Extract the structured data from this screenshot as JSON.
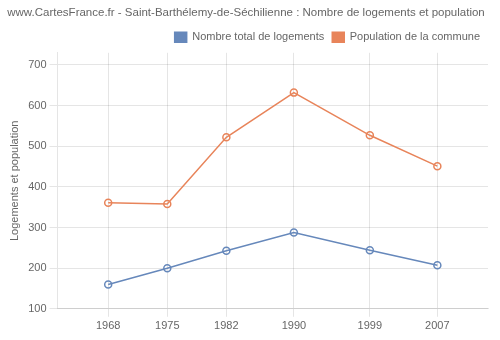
{
  "chart_data": {
    "type": "line",
    "title": "www.CartesFrance.fr - Saint-Barthélemy-de-Séchilienne : Nombre de logements et population",
    "ylabel": "Logements et population",
    "x": [
      1968,
      1975,
      1982,
      1990,
      1999,
      2007
    ],
    "series": [
      {
        "name": "Nombre total de logements",
        "color": "#6688bb",
        "marker": "circle",
        "values": [
          160,
          200,
          243,
          288,
          244,
          207
        ]
      },
      {
        "name": "Population de la commune",
        "color": "#e8845a",
        "marker": "circle",
        "values": [
          361,
          358,
          522,
          632,
          527,
          451
        ]
      }
    ],
    "xlim": [
      1962,
      2013
    ],
    "xticks": [
      1968,
      1975,
      1982,
      1990,
      1999,
      2007
    ],
    "ylim": [
      100,
      730
    ],
    "yticks": [
      100,
      200,
      300,
      400,
      500,
      600,
      700
    ],
    "grid": true,
    "legend": "upper right"
  }
}
